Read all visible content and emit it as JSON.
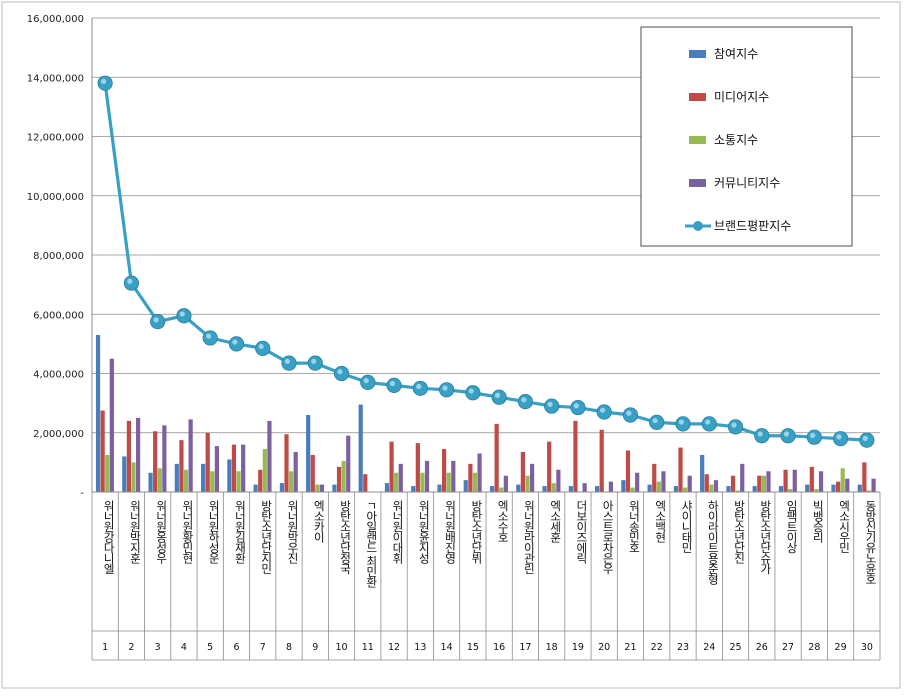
{
  "chart_data": {
    "type": "bar",
    "ylim": [
      0,
      16000000
    ],
    "yticks": [
      "-",
      "2,000,000",
      "4,000,000",
      "6,000,000",
      "8,000,000",
      "10,000,000",
      "12,000,000",
      "14,000,000",
      "16,000,000"
    ],
    "grid": true,
    "legend_position": "top-right",
    "categories": [
      "워너원강다니엘",
      "워너원박지훈",
      "워너원옹성우",
      "워너원황민현",
      "워너원하성운",
      "워너원김재환",
      "방탄소년단지민",
      "워너원박우진",
      "엑소카이",
      "방탄소년단정국",
      "ㄱ아일랜드 최민환",
      "워너원이대휘",
      "워너원윤지성",
      "워너원배진영",
      "방탄소년단뷔",
      "엑소수호",
      "워너원라이관린",
      "엑소세훈",
      "더보이즈에릭",
      "아스트로차은우",
      "워너송민호",
      "엑소백현",
      "샤이니태민",
      "하이라이트용준형",
      "방탄소년단진",
      "방탄소년단슈가",
      "임팩트이상",
      "빅뱅승리",
      "엑소시우민",
      "동방신기유노윤호"
    ],
    "ranks": [
      "1",
      "2",
      "3",
      "4",
      "5",
      "6",
      "7",
      "8",
      "9",
      "10",
      "11",
      "12",
      "13",
      "14",
      "15",
      "16",
      "17",
      "18",
      "19",
      "20",
      "21",
      "22",
      "23",
      "24",
      "25",
      "26",
      "27",
      "28",
      "29",
      "30"
    ],
    "series": [
      {
        "name": "참여지수",
        "color": "#4a7ebb",
        "values": [
          5300000,
          1200000,
          650000,
          950000,
          950000,
          1100000,
          250000,
          300000,
          2600000,
          250000,
          2950000,
          300000,
          200000,
          250000,
          400000,
          200000,
          250000,
          200000,
          200000,
          200000,
          400000,
          250000,
          200000,
          1250000,
          200000,
          200000,
          200000,
          250000,
          250000,
          250000
        ]
      },
      {
        "name": "미디어지수",
        "color": "#be4b48",
        "values": [
          2750000,
          2400000,
          2050000,
          1750000,
          2000000,
          1600000,
          750000,
          1950000,
          1250000,
          850000,
          600000,
          1700000,
          1650000,
          1450000,
          950000,
          2300000,
          1350000,
          1700000,
          2400000,
          2100000,
          1400000,
          950000,
          1500000,
          600000,
          550000,
          550000,
          750000,
          850000,
          350000,
          1000000
        ]
      },
      {
        "name": "소통지수",
        "color": "#98b954",
        "values": [
          1250000,
          1000000,
          800000,
          750000,
          700000,
          700000,
          1450000,
          700000,
          250000,
          1050000,
          0,
          650000,
          650000,
          650000,
          650000,
          150000,
          550000,
          300000,
          0,
          0,
          150000,
          350000,
          150000,
          250000,
          50000,
          550000,
          100000,
          100000,
          800000,
          50000
        ]
      },
      {
        "name": "커뮤니티지수",
        "color": "#7d60a0",
        "values": [
          4500000,
          2500000,
          2250000,
          2450000,
          1550000,
          1600000,
          2400000,
          1350000,
          250000,
          1900000,
          0,
          950000,
          1050000,
          1050000,
          1300000,
          550000,
          950000,
          750000,
          300000,
          350000,
          650000,
          700000,
          550000,
          400000,
          950000,
          700000,
          750000,
          700000,
          450000,
          450000
        ]
      },
      {
        "name": "브랜드평판지수",
        "color": "#37a0c4",
        "values": [
          13800000,
          7050000,
          5750000,
          5950000,
          5200000,
          5000000,
          4850000,
          4350000,
          4350000,
          4000000,
          3700000,
          3600000,
          3500000,
          3450000,
          3350000,
          3200000,
          3050000,
          2900000,
          2850000,
          2700000,
          2600000,
          2350000,
          2300000,
          2300000,
          2200000,
          1900000,
          1900000,
          1850000,
          1800000,
          1750000
        ]
      }
    ]
  }
}
